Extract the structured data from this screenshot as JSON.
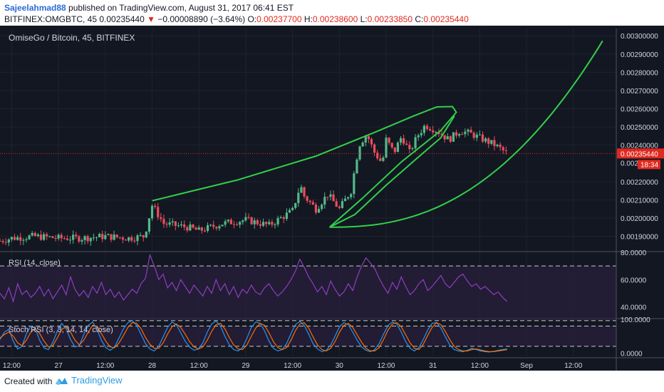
{
  "header": {
    "author": "Sajeelahmad88",
    "published": " published on TradingView.com, August 31, 2017 06:41 EST",
    "symbol": "BITFINEX:OMGBTC, 45  0.00235440",
    "arrow": "▼",
    "change": "−0.00008890 (−3.64%)",
    "o_label": " O:",
    "o_value": "0.00237700",
    "h_label": " H:",
    "h_value": "0.00238600",
    "l_label": " L:",
    "l_value": "0.00233850",
    "c_label": " C:",
    "c_value": "0.00235440"
  },
  "footer": {
    "created": "Created with",
    "brand": "TradingView"
  },
  "colors": {
    "bg": "#131722",
    "up": "#53b987",
    "down": "#eb4d5c",
    "drawing": "#31d04a",
    "rsi": "#8e3fbf",
    "stoch_k": "#2196f3",
    "stoch_d": "#ff6d00",
    "last": "#e0291f"
  },
  "chart_data": [
    {
      "type": "candlestick",
      "title": "OmiseGo / Bitcoin, 45, BITFINEX",
      "y_ticks": [
        "0.00300000",
        "0.00290000",
        "0.00280000",
        "0.00270000",
        "0.00260000",
        "0.00250000",
        "0.00240000",
        "0.00220000",
        "0.00210000",
        "0.00200000",
        "0.00190000"
      ],
      "y_tick_values": [
        0.003,
        0.0029,
        0.0028,
        0.0027,
        0.0026,
        0.0025,
        0.0024,
        0.0022,
        0.0021,
        0.002,
        0.0019
      ],
      "ylim": [
        0.00182,
        0.00304
      ],
      "last_price_label": "0.00235440",
      "partial_label": "0.0023",
      "timer_label": "18:34",
      "last_price": 0.0023544,
      "x_ticks": [
        "12:00",
        "27",
        "12:00",
        "28",
        "12:00",
        "29",
        "12:00",
        "30",
        "12:00",
        "31",
        "12:00",
        "Sep",
        "12:00"
      ],
      "x_tick_hours": [
        12,
        24,
        36,
        48,
        60,
        72,
        84,
        96,
        108,
        120,
        132,
        144,
        156
      ],
      "x_range_hours": [
        9,
        167
      ],
      "data_end_hour": 139,
      "path_points_hours": [
        [
          0,
          0.00187
        ],
        [
          6,
          0.00186
        ],
        [
          12,
          0.00189
        ],
        [
          18,
          0.0019
        ],
        [
          24,
          0.00189
        ],
        [
          30,
          0.00189
        ],
        [
          36,
          0.0019
        ],
        [
          42,
          0.00189
        ],
        [
          46,
          0.0019
        ],
        [
          48,
          0.00207
        ],
        [
          51,
          0.00197
        ],
        [
          57,
          0.00195
        ],
        [
          60,
          0.00193
        ],
        [
          66,
          0.00197
        ],
        [
          72,
          0.00199
        ],
        [
          78,
          0.00196
        ],
        [
          84,
          0.00204
        ],
        [
          86,
          0.00218
        ],
        [
          87,
          0.00212
        ],
        [
          90,
          0.00205
        ],
        [
          93,
          0.00213
        ],
        [
          96,
          0.00205
        ],
        [
          99,
          0.00215
        ],
        [
          101,
          0.0024
        ],
        [
          103,
          0.00246
        ],
        [
          105,
          0.00236
        ],
        [
          107,
          0.0023
        ],
        [
          108,
          0.00243
        ],
        [
          110,
          0.00236
        ],
        [
          112,
          0.00245
        ],
        [
          114,
          0.00236
        ],
        [
          116,
          0.00245
        ],
        [
          118,
          0.00251
        ],
        [
          121,
          0.00248
        ],
        [
          124,
          0.00243
        ],
        [
          127,
          0.00248
        ],
        [
          130,
          0.00246
        ],
        [
          133,
          0.00243
        ],
        [
          136,
          0.0024
        ],
        [
          139,
          0.002354
        ]
      ]
    },
    {
      "type": "line",
      "title": "RSI (14, close)",
      "y_ticks": [
        "80.0000",
        "60.0000",
        "40.0000"
      ],
      "y_tick_values": [
        80,
        60,
        40
      ],
      "ylim": [
        32,
        80
      ],
      "bands": [
        70,
        30
      ],
      "values": [
        50,
        46,
        54,
        44,
        57,
        49,
        52,
        47,
        50,
        55,
        48,
        53,
        46,
        51,
        56,
        49,
        62,
        53,
        48,
        52,
        47,
        55,
        50,
        58,
        49,
        53,
        47,
        51,
        45,
        49,
        53,
        50,
        57,
        61,
        78,
        70,
        60,
        64,
        54,
        58,
        52,
        60,
        55,
        50,
        56,
        52,
        48,
        55,
        50,
        60,
        52,
        57,
        49,
        55,
        47,
        53,
        50,
        56,
        51,
        49,
        54,
        57,
        52,
        48,
        51,
        55,
        60,
        66,
        75,
        69,
        62,
        57,
        51,
        55,
        49,
        59,
        53,
        48,
        51,
        57,
        52,
        62,
        70,
        76,
        72,
        68,
        61,
        55,
        50,
        58,
        53,
        62,
        55,
        49,
        52,
        57,
        60,
        52,
        55,
        59,
        63,
        57,
        54,
        58,
        62,
        64,
        59,
        55,
        57,
        53,
        55,
        52,
        49,
        51,
        47,
        44
      ]
    },
    {
      "type": "line",
      "title": "Stoch RSI (3, 3, 14, 14, close)",
      "y_ticks": [
        "100.0000",
        "0.0000"
      ],
      "y_tick_values": [
        100,
        0
      ],
      "ylim": [
        -10,
        100
      ],
      "bands": [
        80,
        20
      ],
      "series": [
        {
          "name": "%K",
          "values": [
            40,
            62,
            70,
            35,
            12,
            20,
            58,
            80,
            72,
            38,
            15,
            10,
            32,
            66,
            88,
            72,
            40,
            18,
            22,
            55,
            82,
            92,
            70,
            38,
            16,
            8,
            18,
            45,
            72,
            90,
            96,
            82,
            55,
            28,
            12,
            6,
            20,
            48,
            76,
            92,
            84,
            60,
            35,
            18,
            8,
            12,
            30,
            62,
            86,
            95,
            80,
            50,
            25,
            10,
            6,
            16,
            44,
            76,
            92,
            88,
            66,
            36,
            14,
            6,
            10,
            28,
            58,
            84,
            94,
            82,
            56,
            28,
            12,
            4,
            8,
            24,
            50,
            78,
            90,
            84,
            62,
            38,
            18,
            8,
            4,
            10,
            28,
            56,
            82,
            92,
            86,
            62,
            34,
            14,
            6,
            16,
            40,
            68,
            88,
            90,
            74,
            48,
            24,
            10,
            6,
            4,
            8,
            14,
            10,
            6,
            4,
            3,
            5,
            8,
            10,
            12
          ]
        },
        {
          "name": "%D",
          "values": [
            45,
            55,
            62,
            50,
            30,
            22,
            38,
            62,
            72,
            58,
            35,
            18,
            22,
            45,
            70,
            78,
            62,
            38,
            24,
            38,
            62,
            82,
            80,
            58,
            35,
            18,
            16,
            30,
            52,
            76,
            90,
            88,
            72,
            46,
            26,
            14,
            14,
            30,
            56,
            78,
            86,
            76,
            56,
            34,
            18,
            12,
            18,
            38,
            64,
            84,
            88,
            72,
            46,
            24,
            12,
            10,
            24,
            50,
            74,
            88,
            82,
            60,
            34,
            16,
            10,
            16,
            38,
            66,
            86,
            90,
            74,
            48,
            24,
            10,
            6,
            14,
            34,
            62,
            82,
            88,
            76,
            54,
            32,
            14,
            6,
            6,
            16,
            40,
            68,
            86,
            90,
            78,
            54,
            30,
            14,
            10,
            26,
            52,
            76,
            90,
            84,
            64,
            40,
            20,
            10,
            6,
            6,
            10,
            12,
            9,
            6,
            4,
            4,
            6,
            8,
            10
          ]
        }
      ]
    }
  ]
}
